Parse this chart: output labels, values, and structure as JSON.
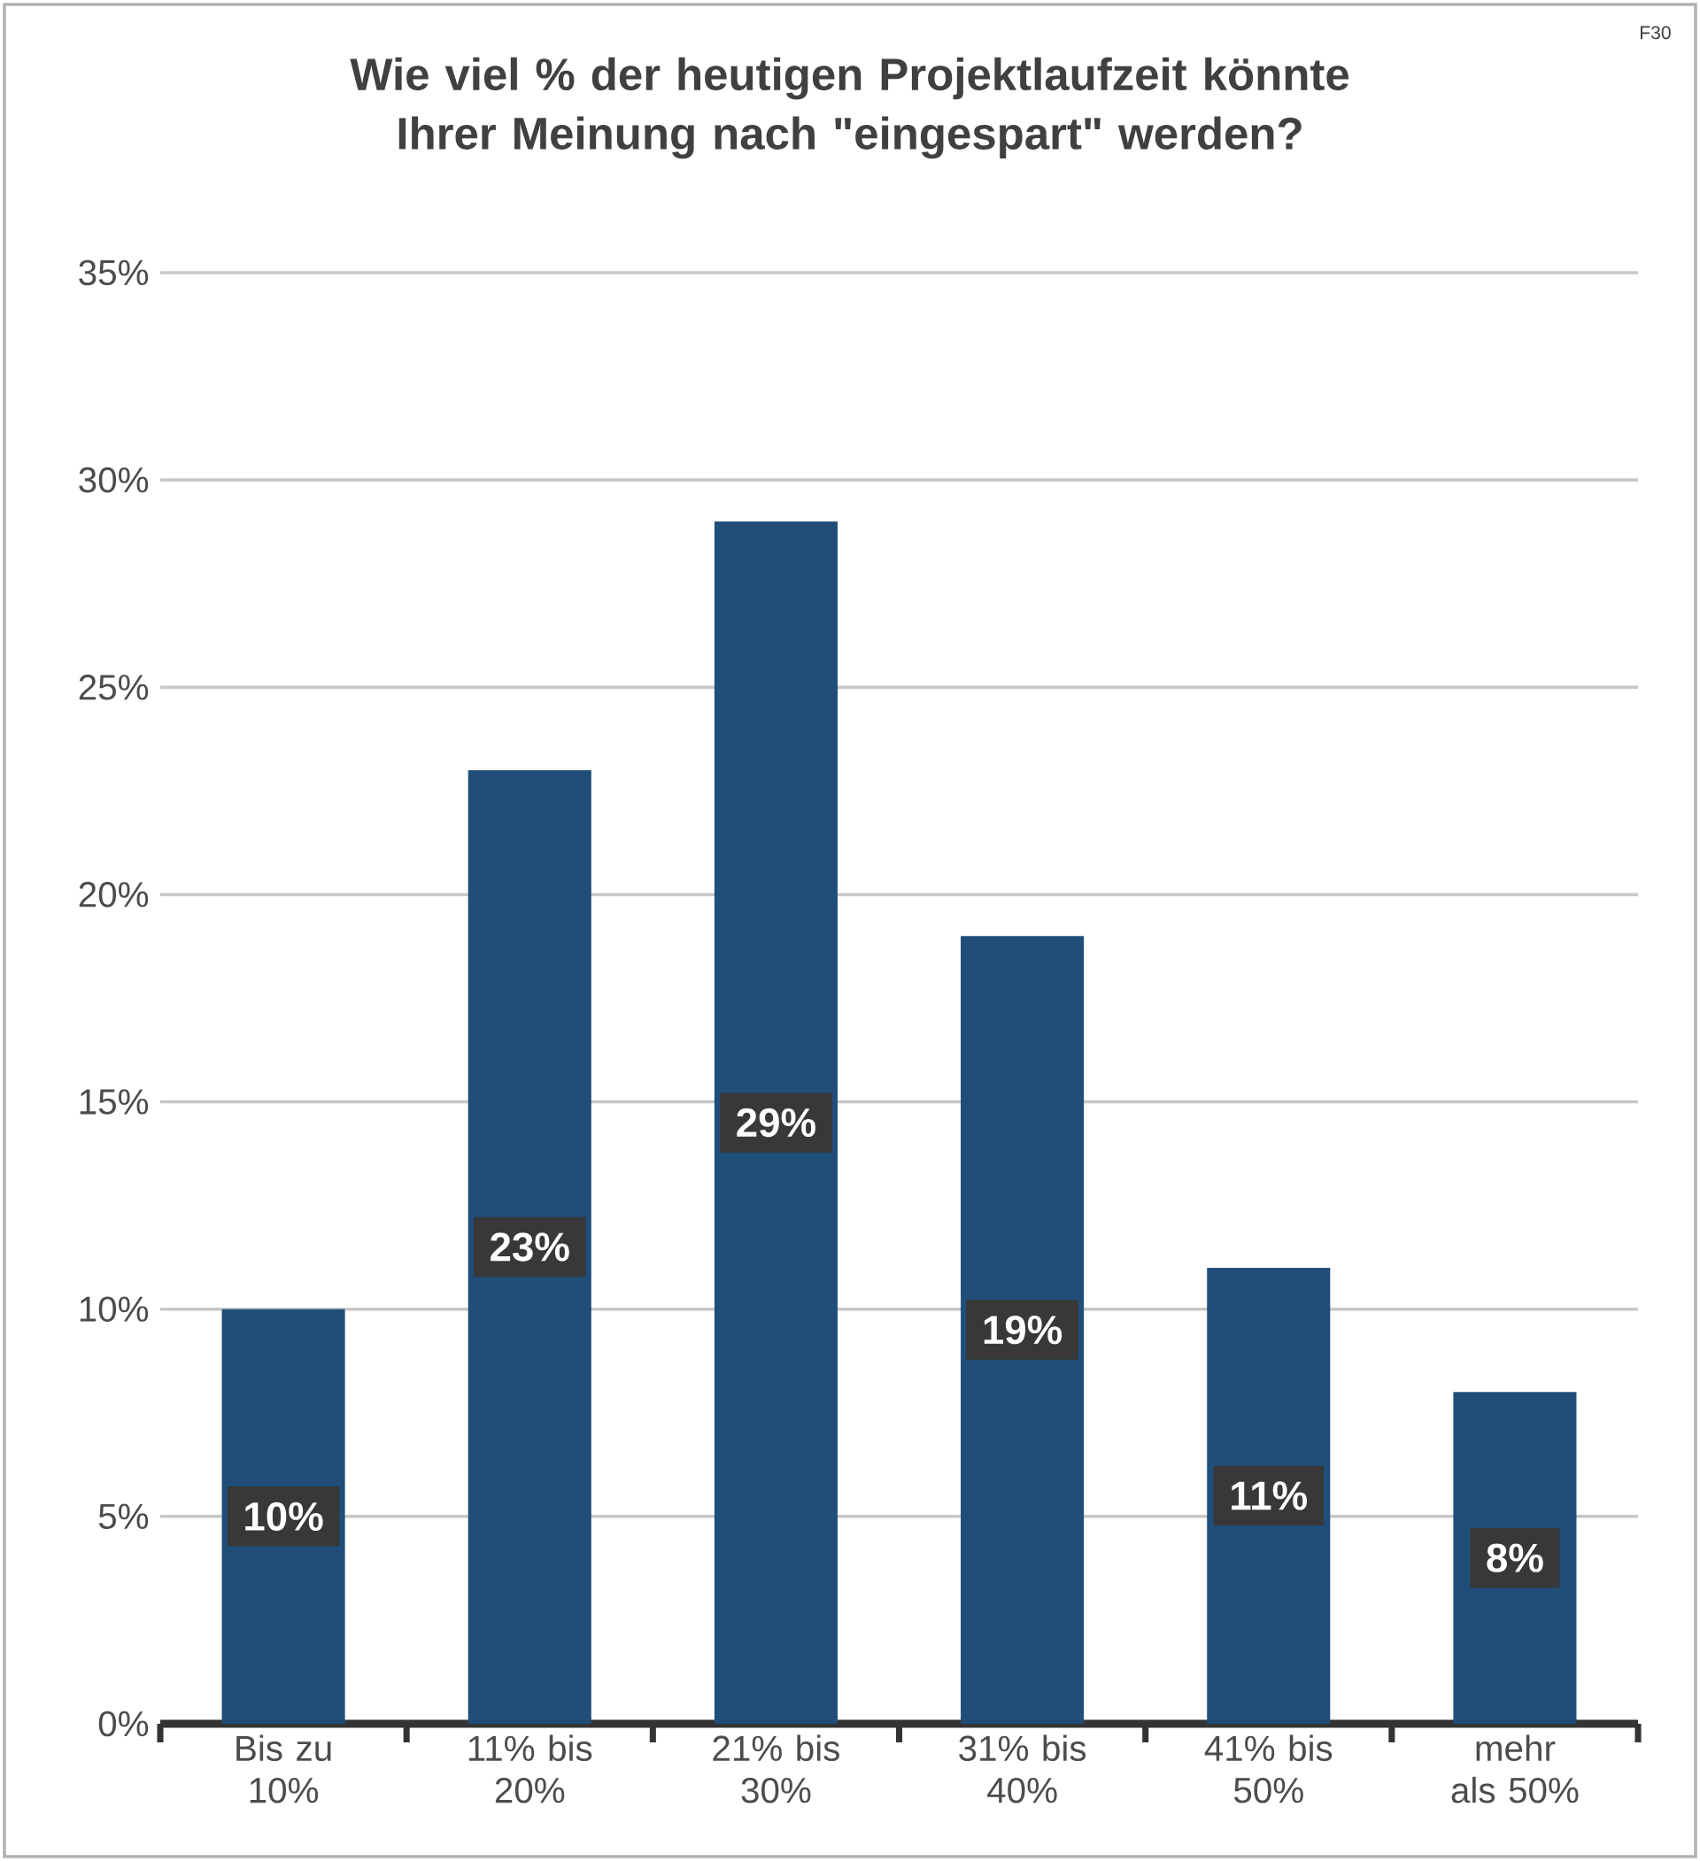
{
  "chart_data": {
    "type": "bar",
    "title": "Wie viel % der heutigen Projektlaufzeit könnte Ihrer Meinung nach \"eingespart\" werden?",
    "categories": [
      "Bis zu 10%",
      "11% bis 20%",
      "21% bis 30%",
      "31% bis 40%",
      "41% bis 50%",
      "mehr als 50%"
    ],
    "values": [
      10,
      23,
      29,
      19,
      11,
      8
    ],
    "value_labels": [
      "10%",
      "23%",
      "29%",
      "19%",
      "11%",
      "8%"
    ],
    "color": "#1f4e79",
    "ylim": [
      0,
      35
    ],
    "yticks": [
      {
        "value": 0,
        "label": "0%"
      },
      {
        "value": 5,
        "label": "5%"
      },
      {
        "value": 10,
        "label": "10%"
      },
      {
        "value": 15,
        "label": "15%"
      },
      {
        "value": 20,
        "label": "20%"
      },
      {
        "value": 25,
        "label": "25%"
      },
      {
        "value": 30,
        "label": "30%"
      },
      {
        "value": 35,
        "label": "35%"
      }
    ],
    "grid": "y",
    "annotations": [
      "F30"
    ]
  }
}
